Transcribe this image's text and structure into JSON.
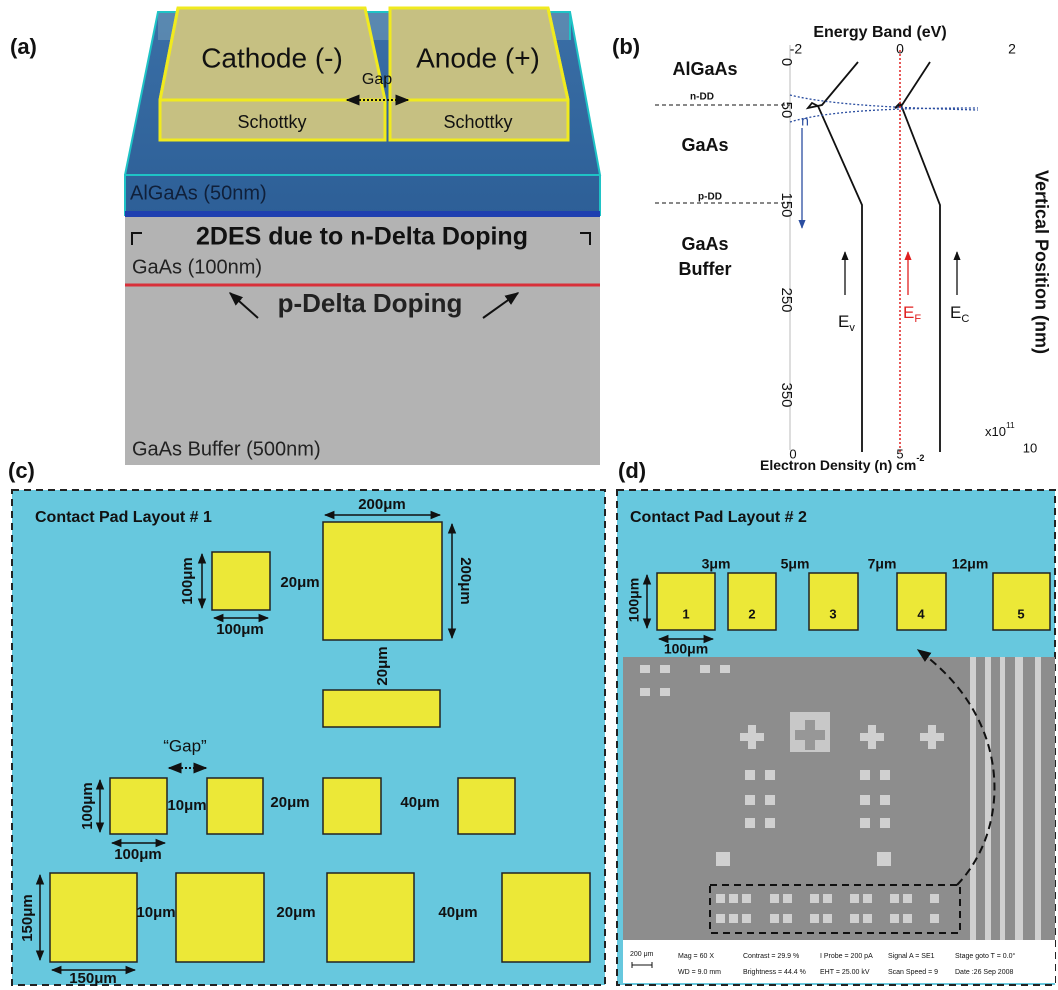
{
  "panel_a": {
    "label": "(a)",
    "cathode": "Cathode (-)",
    "anode": "Anode (+)",
    "gap": "Gap",
    "schottky_left": "Schottky",
    "schottky_right": "Schottky",
    "algaas": "AlGaAs (50nm)",
    "n_delta": "2DES due to n-Delta Doping",
    "gaas": "GaAs (100nm)",
    "p_delta": "p-Delta Doping",
    "buffer": "GaAs Buffer (500nm)"
  },
  "panel_b": {
    "label": "(b)",
    "top_title": "Energy Band (eV)",
    "top_ticks": [
      "-2",
      "0",
      "2"
    ],
    "layers": {
      "algaas": "AlGaAs",
      "n_dd": "n-DD",
      "gaas": "GaAs",
      "p_dd": "p-DD",
      "buffer_1": "GaAs",
      "buffer_2": "Buffer"
    },
    "y_ticks": [
      "0",
      "50",
      "150",
      "250",
      "350"
    ],
    "y_title": "Vertical Position (nm)",
    "n_label": "n",
    "ev": {
      "main": "E",
      "sub": "v"
    },
    "ef": {
      "main": "E",
      "sub": "F"
    },
    "ec": {
      "main": "E",
      "sub": "C"
    },
    "bottom_ticks": [
      "0",
      "5",
      "10"
    ],
    "multiplier": {
      "base": "x10",
      "exp": "11"
    },
    "bottom_title": {
      "main": "Electron Density (n) cm",
      "exp": "-2"
    }
  },
  "panel_c": {
    "label": "(c)",
    "title": "Contact Pad Layout # 1",
    "dims": [
      "200μm",
      "100μm",
      "100μm",
      "20μm",
      "200μm",
      "20μm",
      "“Gap”",
      "100μm",
      "10μm",
      "20μm",
      "40μm",
      "100μm",
      "150μm",
      "10μm",
      "20μm",
      "40μm",
      "150μm"
    ]
  },
  "panel_d": {
    "label": "(d)",
    "title": "Contact Pad Layout # 2",
    "dims": [
      "3μm",
      "5μm",
      "7μm",
      "12μm",
      "100μm",
      "100μm"
    ],
    "pads": [
      "1",
      "2",
      "3",
      "4",
      "5"
    ],
    "sem_footer": [
      "200 μm",
      "Mag =  60 X",
      "WD =  9.0 mm",
      "Contrast = 29.9 %",
      "Brightness = 44.4 %",
      "I Probe =  200 pA",
      "EHT = 25.00 kV",
      "Signal A = SE1",
      "Scan Speed = 9",
      "Stage goto T =  0.0°",
      "Date :26 Sep 2008"
    ]
  }
}
